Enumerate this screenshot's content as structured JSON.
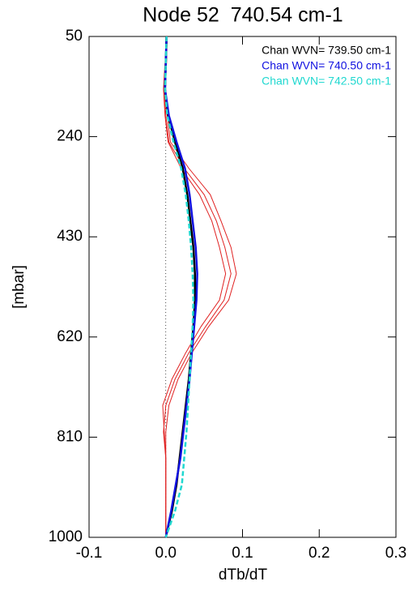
{
  "chart_data": {
    "type": "line",
    "title": "Node 52  740.54 cm-1",
    "xlabel": "dTb/dT",
    "ylabel": "[mbar]",
    "y": [
      50,
      100,
      150,
      200,
      250,
      300,
      350,
      400,
      450,
      500,
      550,
      600,
      650,
      700,
      750,
      800,
      850,
      900,
      950,
      1000
    ],
    "invert_y": true,
    "zero_line": true,
    "legend": "upper right",
    "series": [
      {
        "color": "#e02020",
        "values": [
          0.001,
          0.0,
          -0.002,
          0.0,
          0.004,
          0.024,
          0.05,
          0.066,
          0.077,
          0.085,
          0.076,
          0.052,
          0.03,
          0.012,
          0.0,
          -0.003,
          0.0,
          0.0,
          0.0,
          0.0
        ]
      },
      {
        "color": "#e02020",
        "values": [
          0.002,
          0.001,
          -0.001,
          0.002,
          0.006,
          0.03,
          0.058,
          0.072,
          0.085,
          0.092,
          0.082,
          0.056,
          0.034,
          0.016,
          0.004,
          0.0,
          0.0,
          0.0,
          0.0,
          0.0
        ]
      },
      {
        "color": "#e02020",
        "values": [
          0.001,
          -0.001,
          -0.003,
          -0.001,
          0.003,
          0.02,
          0.044,
          0.06,
          0.07,
          0.078,
          0.07,
          0.046,
          0.026,
          0.008,
          -0.004,
          -0.002,
          0.0,
          0.0,
          0.0,
          0.0
        ]
      },
      {
        "name": "Chan WVN= 739.50 cm-1",
        "color": "#000000",
        "values": [
          0.001,
          0.0,
          -0.001,
          0.003,
          0.012,
          0.022,
          0.028,
          0.032,
          0.036,
          0.038,
          0.038,
          0.036,
          0.033,
          0.03,
          0.026,
          0.022,
          0.018,
          0.014,
          0.008,
          0.0
        ]
      },
      {
        "name": "Chan WVN= 740.50 cm-1",
        "color": "#1010e0",
        "values": [
          0.001,
          0.0,
          -0.001,
          0.004,
          0.014,
          0.025,
          0.031,
          0.035,
          0.039,
          0.041,
          0.04,
          0.037,
          0.034,
          0.031,
          0.027,
          0.023,
          0.019,
          0.013,
          0.007,
          0.0
        ]
      },
      {
        "name": "Chan WVN= 742.50 cm-1",
        "color": "#20d8d0",
        "values": [
          0.001,
          0.0,
          -0.001,
          0.002,
          0.01,
          0.02,
          0.026,
          0.03,
          0.033,
          0.035,
          0.036,
          0.035,
          0.033,
          0.031,
          0.029,
          0.027,
          0.024,
          0.021,
          0.012,
          0.0
        ]
      }
    ],
    "xlim": [
      -0.1,
      0.3
    ],
    "xticks": [
      -0.1,
      {
        "value": 0,
        "label": "0.0"
      },
      0.1,
      0.2,
      0.3
    ],
    "ylim": [
      50,
      1000
    ],
    "yticks": [
      50,
      240,
      430,
      620,
      810,
      1000
    ]
  }
}
